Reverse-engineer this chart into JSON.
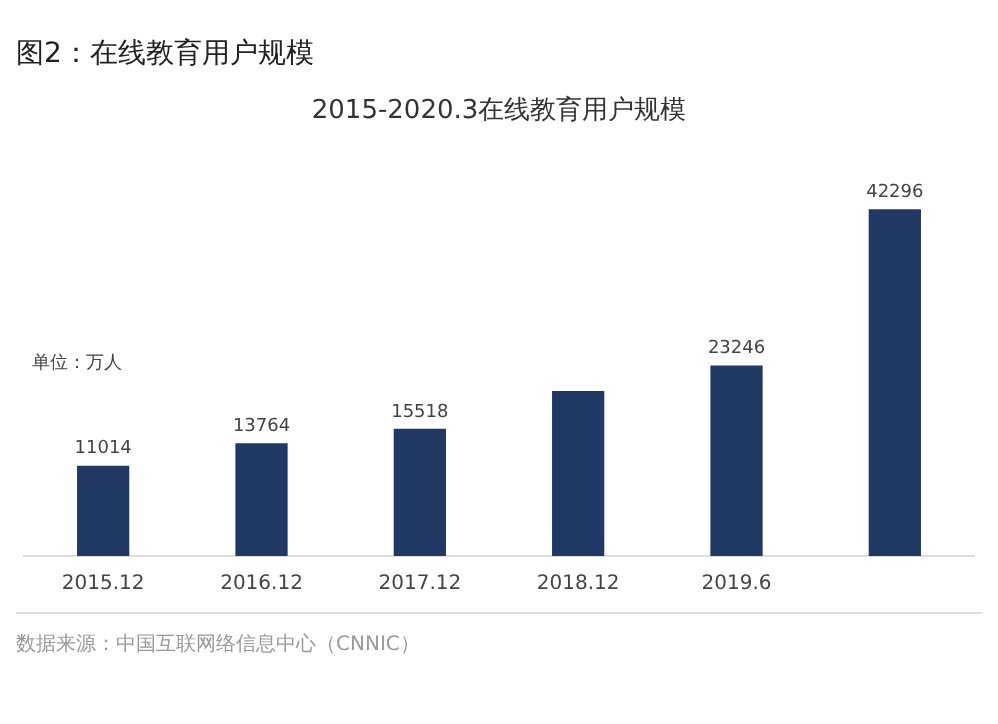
{
  "chart_data": {
    "type": "bar",
    "title": "图2：在线教育用户规模",
    "subtitle": "2015-2020.3在线教育用户规模",
    "categories": [
      "2015.12",
      "2016.12",
      "2017.12",
      "2018.12",
      "2019.6",
      null
    ],
    "values": [
      11014,
      13764,
      15518,
      20123,
      23246,
      42296
    ],
    "value_labels": [
      "11014",
      "13764",
      "15518",
      null,
      "23246",
      "42296"
    ],
    "color": "#1f3864",
    "grid": false,
    "legend": false,
    "annotations": [
      "单位：万人",
      "数据来源：中国互联网络信息中心（CNNIC）"
    ]
  }
}
